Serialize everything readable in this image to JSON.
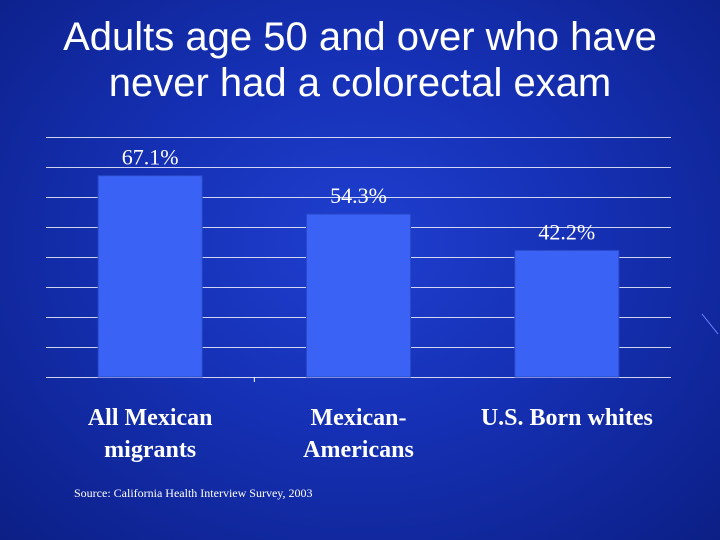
{
  "title": {
    "line1": "Adults age 50 and over who have",
    "line2": "never had a colorectal exam"
  },
  "colors": {
    "bar": "#3a63f5",
    "grid": "#ffffff",
    "text": "#ffffff"
  },
  "chart_data": {
    "type": "bar",
    "title": "",
    "xlabel": "",
    "ylabel": "",
    "ylim": [
      0,
      80
    ],
    "grid": true,
    "categories": [
      [
        "All Mexican",
        "migrants"
      ],
      [
        "Mexican-",
        "Americans"
      ],
      [
        "U.S. Born whites"
      ]
    ],
    "values": [
      67.1,
      54.3,
      42.2
    ],
    "data_labels": [
      "67.1%",
      "54.3%",
      "42.2%"
    ]
  },
  "source": "Source: California Health Interview Survey, 2003"
}
